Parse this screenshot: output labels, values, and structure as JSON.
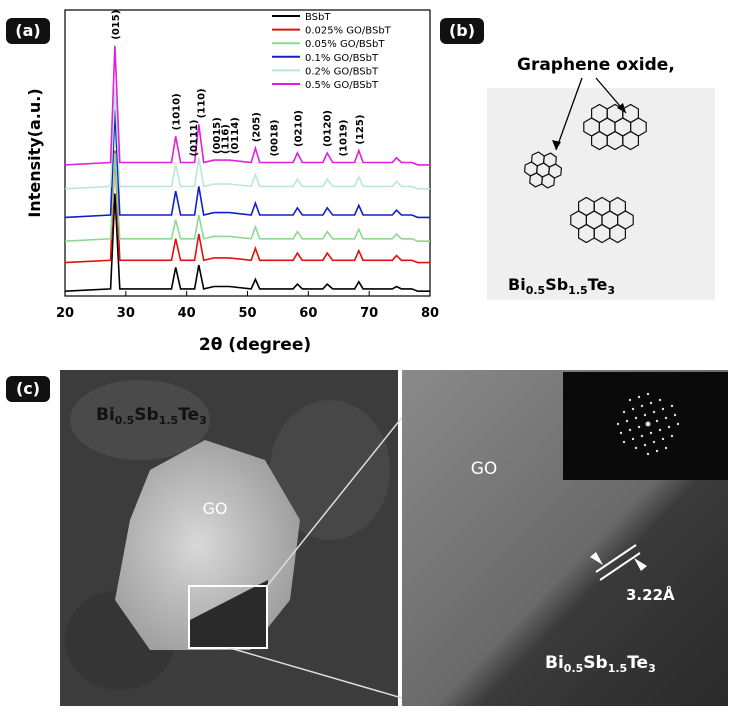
{
  "panels": {
    "a": "(a)",
    "b": "(b)",
    "c": "(c)"
  },
  "chart_data": {
    "type": "line",
    "xlabel": "2θ (degree)",
    "ylabel": "Intensity(a.u.)",
    "xlim": [
      20,
      80
    ],
    "xticks": [
      20,
      30,
      40,
      50,
      60,
      70,
      80
    ],
    "ylim": [
      0,
      12
    ],
    "x": [
      20,
      27.5,
      28.2,
      29,
      37.5,
      38.2,
      39,
      41.3,
      42,
      42.8,
      44.5,
      45.5,
      47,
      50.6,
      51.3,
      52,
      57.5,
      58.2,
      59,
      62.4,
      63.1,
      64,
      67.6,
      68.3,
      69,
      73.8,
      74.5,
      75.3,
      77,
      78,
      80
    ],
    "series": [
      {
        "name": "BSbT",
        "color": "#000000",
        "values": [
          0.2,
          0.3,
          4.3,
          0.3,
          0.3,
          1.2,
          0.3,
          0.3,
          1.3,
          0.3,
          0.4,
          0.4,
          0.4,
          0.3,
          0.7,
          0.3,
          0.3,
          0.5,
          0.3,
          0.3,
          0.5,
          0.3,
          0.3,
          0.6,
          0.3,
          0.3,
          0.4,
          0.3,
          0.3,
          0.2,
          0.2
        ]
      },
      {
        "name": "0.025% GO/BSbT",
        "color": "#e01010",
        "values": [
          1.4,
          1.5,
          6.1,
          1.5,
          1.5,
          2.4,
          1.5,
          1.5,
          2.6,
          1.5,
          1.6,
          1.6,
          1.6,
          1.5,
          2.0,
          1.5,
          1.5,
          1.8,
          1.5,
          1.5,
          1.8,
          1.5,
          1.5,
          1.9,
          1.5,
          1.5,
          1.7,
          1.5,
          1.5,
          1.4,
          1.4
        ]
      },
      {
        "name": "0.05% GO/BSbT",
        "color": "#8fd88f",
        "values": [
          2.3,
          2.4,
          6.0,
          2.4,
          2.4,
          3.2,
          2.4,
          2.4,
          3.4,
          2.4,
          2.5,
          2.5,
          2.5,
          2.4,
          2.9,
          2.4,
          2.4,
          2.7,
          2.4,
          2.4,
          2.7,
          2.4,
          2.4,
          2.8,
          2.4,
          2.4,
          2.6,
          2.4,
          2.4,
          2.3,
          2.3
        ]
      },
      {
        "name": "0.1% GO/BSbT",
        "color": "#1020c8",
        "values": [
          3.3,
          3.4,
          7.8,
          3.4,
          3.4,
          4.4,
          3.4,
          3.4,
          4.6,
          3.4,
          3.5,
          3.5,
          3.5,
          3.4,
          3.9,
          3.4,
          3.4,
          3.7,
          3.4,
          3.4,
          3.7,
          3.4,
          3.4,
          3.8,
          3.4,
          3.4,
          3.6,
          3.4,
          3.4,
          3.3,
          3.3
        ]
      },
      {
        "name": "0.2% GO/BSbT",
        "color": "#b8e8d8",
        "values": [
          4.5,
          4.6,
          8.7,
          4.6,
          4.6,
          5.5,
          4.6,
          4.6,
          5.8,
          4.6,
          4.7,
          4.7,
          4.7,
          4.6,
          5.1,
          4.6,
          4.6,
          4.9,
          4.6,
          4.6,
          4.9,
          4.6,
          4.6,
          5.0,
          4.6,
          4.6,
          4.8,
          4.6,
          4.6,
          4.5,
          4.5
        ]
      },
      {
        "name": "0.5% GO/BSbT",
        "color": "#e020e0",
        "values": [
          5.5,
          5.6,
          10.5,
          5.6,
          5.6,
          6.7,
          5.6,
          5.6,
          7.2,
          5.6,
          5.7,
          5.7,
          5.7,
          5.6,
          6.2,
          5.6,
          5.6,
          6.0,
          5.6,
          5.6,
          6.0,
          5.6,
          5.6,
          6.1,
          5.6,
          5.6,
          5.8,
          5.6,
          5.6,
          5.5,
          5.5
        ]
      }
    ],
    "annotations": [
      {
        "label": "(015)",
        "x": 28.2
      },
      {
        "label": "(1010)",
        "x": 38.2
      },
      {
        "label": "(0111)",
        "x": 41
      },
      {
        "label": "(110)",
        "x": 42.3
      },
      {
        "label": "(0015)",
        "x": 44.8
      },
      {
        "label": "(116)",
        "x": 46.2
      },
      {
        "label": "(0114)",
        "x": 47.8
      },
      {
        "label": "(205)",
        "x": 51.3
      },
      {
        "label": "(0018)",
        "x": 54.3
      },
      {
        "label": "(0210)",
        "x": 58.2
      },
      {
        "label": "(0120)",
        "x": 63
      },
      {
        "label": "(1019)",
        "x": 65.6
      },
      {
        "label": "(125)",
        "x": 68.3
      }
    ]
  },
  "diagram": {
    "label": "Graphene oxide,",
    "matrix": [
      "Bi",
      "0.5",
      "Sb",
      "1.5",
      "Te",
      "3"
    ]
  },
  "tem": {
    "left_go": "GO",
    "left_matrix": [
      "Bi",
      "0.5",
      "Sb",
      "1.5",
      "Te",
      "3"
    ],
    "right_go": "GO",
    "spacing": "3.22Å",
    "right_matrix": [
      "Bi",
      "0.5",
      "Sb",
      "1.5",
      "Te",
      "3"
    ]
  }
}
